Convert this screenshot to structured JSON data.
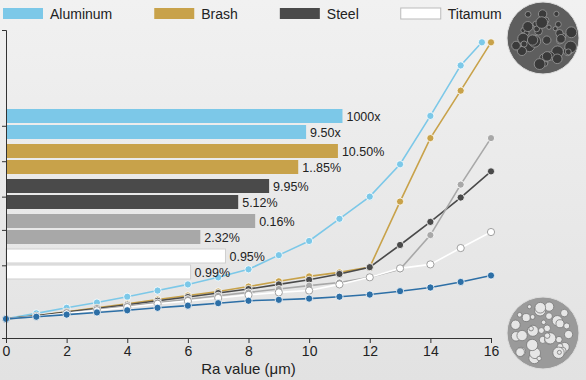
{
  "chart_data": {
    "type": "line",
    "x_label": "Ra value (μm)",
    "xlim": [
      0,
      16
    ],
    "xticks": [
      0,
      2,
      4,
      6,
      8,
      10,
      12,
      14,
      16
    ],
    "ylim": [
      0,
      100
    ],
    "yticks": [
      23.6,
      35.1,
      45.9,
      57.4,
      68.9
    ],
    "tick_labels": "x",
    "grid": false,
    "legend": "top",
    "marker": "circle",
    "series": [
      {
        "name": "Aluminum",
        "color": "#7cc8e8",
        "x": [
          0,
          1,
          2,
          3,
          4,
          5,
          6,
          7,
          8,
          9,
          10,
          11,
          12,
          13,
          14,
          15,
          15.7
        ],
        "values": [
          6.2,
          8.0,
          9.8,
          11.5,
          13.4,
          15.4,
          17.4,
          19.7,
          22.3,
          26.9,
          31.5,
          38.7,
          45.9,
          56.4,
          72.1,
          88.5,
          96
        ]
      },
      {
        "name": "Brash",
        "color": "#c8a24a",
        "x": [
          0,
          1,
          2,
          3,
          4,
          5,
          6,
          7,
          8,
          9,
          10,
          11,
          12,
          13,
          14,
          15,
          16
        ],
        "values": [
          6.2,
          7.2,
          8.5,
          9.8,
          11.1,
          12.5,
          13.8,
          15.1,
          16.7,
          18.4,
          20.0,
          21.3,
          23.0,
          44.3,
          64.9,
          80.3,
          96
        ]
      },
      {
        "name": "Steel",
        "color": "#4a4a4a",
        "x": [
          0,
          1,
          2,
          3,
          4,
          5,
          6,
          7,
          8,
          9,
          10,
          11,
          12,
          13,
          14,
          15,
          16
        ],
        "values": [
          6.2,
          7.2,
          8.4,
          9.6,
          10.8,
          12.1,
          13.3,
          14.6,
          15.9,
          17.4,
          18.9,
          20.8,
          23.0,
          30.2,
          37.7,
          45.6,
          54.1
        ]
      },
      {
        "color": "#a8a8a8",
        "x": [
          0,
          1,
          2,
          3,
          4,
          5,
          6,
          7,
          8,
          9,
          10,
          11,
          12,
          13,
          14,
          15,
          16
        ],
        "values": [
          6.2,
          7.0,
          8.1,
          9.2,
          10.4,
          11.5,
          12.6,
          13.7,
          14.8,
          15.9,
          17.0,
          18.0,
          19.7,
          22.3,
          33.4,
          49.8,
          64.9
        ]
      },
      {
        "name": "Titamum",
        "color": "#ffffff",
        "x": [
          0,
          1,
          2,
          3,
          4,
          5,
          6,
          7,
          8,
          9,
          10,
          11,
          12,
          13,
          14,
          15,
          16
        ],
        "values": [
          6.2,
          7.0,
          8.0,
          9.0,
          10.0,
          11.1,
          12.0,
          13.0,
          14.0,
          14.8,
          15.4,
          17.4,
          19.7,
          22.6,
          23.9,
          29.2,
          34.4
        ]
      },
      {
        "color": "#2d6fa6",
        "x": [
          0,
          1,
          2,
          3,
          4,
          5,
          6,
          7,
          8,
          9,
          10,
          11,
          12,
          13,
          14,
          15,
          16
        ],
        "values": [
          6.2,
          6.9,
          7.6,
          8.3,
          9.0,
          9.8,
          10.5,
          11.3,
          12.1,
          12.4,
          12.8,
          13.4,
          14.1,
          15.2,
          16.4,
          18.2,
          20.3
        ]
      }
    ],
    "bars": {
      "orientation": "horizontal",
      "values": [
        11.1,
        9.9,
        10.95,
        9.64,
        8.68,
        7.66,
        8.22,
        6.41,
        7.24,
        6.09
      ],
      "colors": [
        "#7cc8e8",
        "#7cc8e8",
        "#c8a24a",
        "#c8a24a",
        "#4a4a4a",
        "#4a4a4a",
        "#a8a8a8",
        "#a8a8a8",
        "#ffffff",
        "#ffffff"
      ],
      "labels": [
        "1000x",
        "9.50x",
        "10.50%",
        "1..85%",
        "9.95%",
        "5.12%",
        "0.16%",
        "2.32%",
        "0.95%",
        "0.99%"
      ]
    }
  }
}
